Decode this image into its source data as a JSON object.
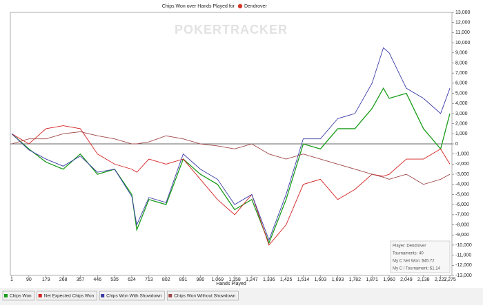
{
  "chart_data": {
    "type": "line",
    "title": "Chips Won over Hands Played for",
    "title_player": "Dendrover",
    "watermark": "POKERTRACKER",
    "x_label": "Hands Played",
    "x": [
      1,
      90,
      179,
      268,
      357,
      446,
      535,
      624,
      650,
      713,
      802,
      891,
      980,
      1069,
      1158,
      1247,
      1336,
      1425,
      1514,
      1603,
      1693,
      1782,
      1871,
      1930,
      1960,
      2049,
      2138,
      2227,
      2275
    ],
    "series": [
      {
        "name": "Chips Won",
        "color": "#1a9c1a",
        "values": [
          1000,
          -500,
          -1800,
          -2500,
          -1000,
          -3000,
          -2500,
          -5000,
          -8500,
          -5500,
          -6000,
          -1500,
          -3000,
          -4000,
          -6500,
          -5500,
          -9800,
          -5500,
          0,
          -500,
          1500,
          1500,
          3500,
          5500,
          4500,
          5000,
          1500,
          -500,
          3000
        ]
      },
      {
        "name": "Net Expected Chips Won",
        "color": "#d42020",
        "values": [
          1000,
          0,
          1500,
          1800,
          1500,
          -1000,
          -2000,
          -2500,
          -2800,
          -1500,
          -2000,
          -1500,
          -3500,
          -5500,
          -7000,
          -5000,
          -10000,
          -8000,
          -4000,
          -3500,
          -5500,
          -4500,
          -3000,
          -3200,
          -3000,
          -1500,
          -1500,
          -500,
          -2000
        ]
      },
      {
        "name": "Chips Won With Showdown",
        "color": "#3a3aa8",
        "values": [
          1000,
          -600,
          -1500,
          -2200,
          -1200,
          -2800,
          -2500,
          -5200,
          -8000,
          -5300,
          -5800,
          -1000,
          -2500,
          -3500,
          -6000,
          -5000,
          -9500,
          -5000,
          500,
          500,
          2500,
          3000,
          6000,
          9500,
          9000,
          5500,
          4500,
          3000,
          5500
        ]
      },
      {
        "name": "Chips Won Without Showdown",
        "color": "#a04848",
        "values": [
          0,
          500,
          500,
          1000,
          1200,
          800,
          500,
          0,
          0,
          200,
          800,
          500,
          0,
          -200,
          -500,
          0,
          -1000,
          -1500,
          -1000,
          -1500,
          -2000,
          -2500,
          -3000,
          -3300,
          -3500,
          -3000,
          -4000,
          -3500,
          -3000
        ]
      }
    ],
    "xlim": [
      1,
      2275
    ],
    "xticks": [
      1,
      90,
      179,
      268,
      357,
      446,
      535,
      624,
      713,
      802,
      891,
      980,
      {
        "value": 1069,
        "label": "1,069"
      },
      {
        "value": 1158,
        "label": "1,158"
      },
      {
        "value": 1247,
        "label": "1,247"
      },
      {
        "value": 1336,
        "label": "1,336"
      },
      {
        "value": 1425,
        "label": "1,425"
      },
      {
        "value": 1514,
        "label": "1,514"
      },
      {
        "value": 1603,
        "label": "1,603"
      },
      {
        "value": 1693,
        "label": "1,693"
      },
      {
        "value": 1782,
        "label": "1,782"
      },
      {
        "value": 1871,
        "label": "1,871"
      },
      {
        "value": 1960,
        "label": "1,960"
      },
      {
        "value": 2049,
        "label": "2,049"
      },
      {
        "value": 2138,
        "label": "2,138"
      },
      {
        "value": 2227,
        "label": "2,227"
      },
      {
        "value": 2275,
        "label": "2,275"
      }
    ],
    "ylim": [
      -13000,
      13000
    ],
    "yticks": [
      {
        "value": 13000,
        "label": "13,000"
      },
      {
        "value": 12000,
        "label": "12,000"
      },
      {
        "value": 11000,
        "label": "11,000"
      },
      {
        "value": 10000,
        "label": "10,000"
      },
      {
        "value": 9000,
        "label": "9,000"
      },
      {
        "value": 8000,
        "label": "8,000"
      },
      {
        "value": 7000,
        "label": "7,000"
      },
      {
        "value": 6000,
        "label": "6,000"
      },
      {
        "value": 5000,
        "label": "5,000"
      },
      {
        "value": 4000,
        "label": "4,000"
      },
      {
        "value": 3000,
        "label": "3,000"
      },
      {
        "value": 2000,
        "label": "2,000"
      },
      {
        "value": 1000,
        "label": "1,000"
      },
      0,
      {
        "value": -1000,
        "label": "-1,000"
      },
      {
        "value": -2000,
        "label": "-2,000"
      },
      {
        "value": -3000,
        "label": "-3,000"
      },
      {
        "value": -4000,
        "label": "-4,000"
      },
      {
        "value": -5000,
        "label": "-5,000"
      },
      {
        "value": -6000,
        "label": "-6,000"
      },
      {
        "value": -7000,
        "label": "-7,000"
      },
      {
        "value": -8000,
        "label": "-8,000"
      },
      {
        "value": -9000,
        "label": "-9,000"
      },
      {
        "value": -10000,
        "label": "-10,000"
      },
      {
        "value": -11000,
        "label": "-11,000"
      },
      {
        "value": -12000,
        "label": "-12,000"
      },
      {
        "value": -13000,
        "label": "-13,000"
      }
    ],
    "grid": false,
    "info_box": [
      "Player: Dendrover",
      "Tournaments: 40",
      "My C Net Won: $45.72",
      "My C / Tournament: $1.14"
    ]
  }
}
